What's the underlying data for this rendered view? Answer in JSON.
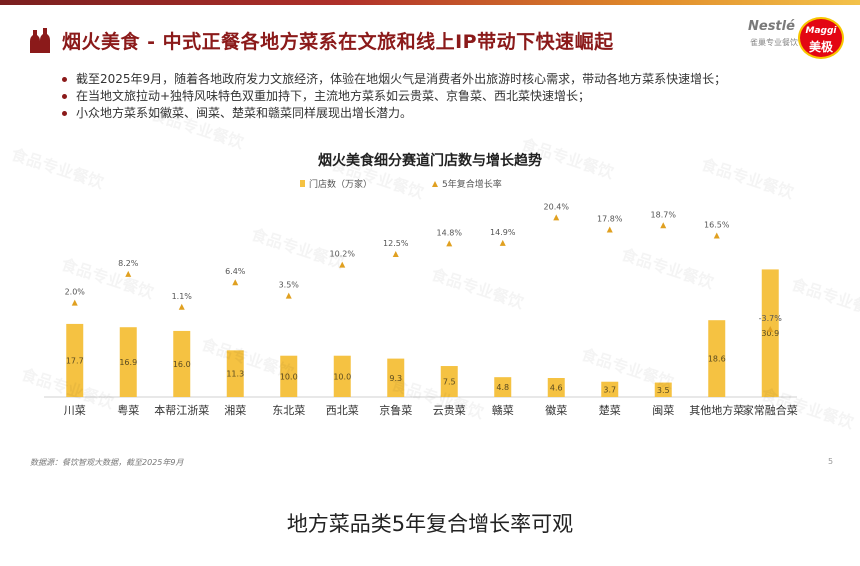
{
  "slide": {
    "title": "烟火美食 - 中式正餐各地方菜系在文旅和线上IP带动下快速崛起",
    "logo": {
      "brand_top": "Nestlé",
      "brand_sub": "雀巢专业餐饮",
      "maggi_latin": "Maggi",
      "maggi_cn": "美极"
    },
    "bullets": [
      "截至2025年9月，随着各地政府发力文旅经济，体验在地烟火气是消费者外出旅游时核心需求，带动各地方菜系快速增长；",
      "在当地文旅拉动+独特风味特色双重加持下，主流地方菜系如云贵菜、京鲁菜、西北菜快速增长；",
      "小众地方菜系如徽菜、闽菜、楚菜和赣菜同样展现出增长潜力。"
    ],
    "source": "数据源：餐饮智观大数据，截至2025年9月",
    "page_number": "5",
    "watermark": "食品专业餐饮"
  },
  "caption": "地方菜品类5年复合增长率可观",
  "colors": {
    "bar": "#f5c242",
    "marker": "#e0a020",
    "title": "#8b1a1a",
    "text": "#333333"
  },
  "chart_data": {
    "type": "bar",
    "title": "烟火美食细分赛道门店数与增长趋势",
    "categories": [
      "川菜",
      "粤菜",
      "本帮江浙菜",
      "湘菜",
      "东北菜",
      "西北菜",
      "京鲁菜",
      "云贵菜",
      "赣菜",
      "徽菜",
      "楚菜",
      "闽菜",
      "其他地方菜",
      "家常融合菜"
    ],
    "series": [
      {
        "name": "门店数（万家）",
        "kind": "bar",
        "values": [
          17.7,
          16.9,
          16.0,
          11.3,
          10.0,
          10.0,
          9.3,
          7.5,
          4.8,
          4.6,
          3.7,
          3.5,
          18.6,
          30.9
        ]
      },
      {
        "name": "5年复合增长率",
        "kind": "marker",
        "values": [
          2.0,
          8.2,
          1.1,
          6.4,
          3.5,
          10.2,
          12.5,
          14.8,
          14.9,
          20.4,
          17.8,
          18.7,
          16.5,
          -3.7
        ],
        "labels": [
          "2.0%",
          "8.2%",
          "1.1%",
          "6.4%",
          "3.5%",
          "10.2%",
          "12.5%",
          "14.8%",
          "14.9%",
          "20.4%",
          "17.8%",
          "18.7%",
          "16.5%",
          "-3.7%"
        ]
      }
    ],
    "legend_position": "top",
    "grid": false
  }
}
